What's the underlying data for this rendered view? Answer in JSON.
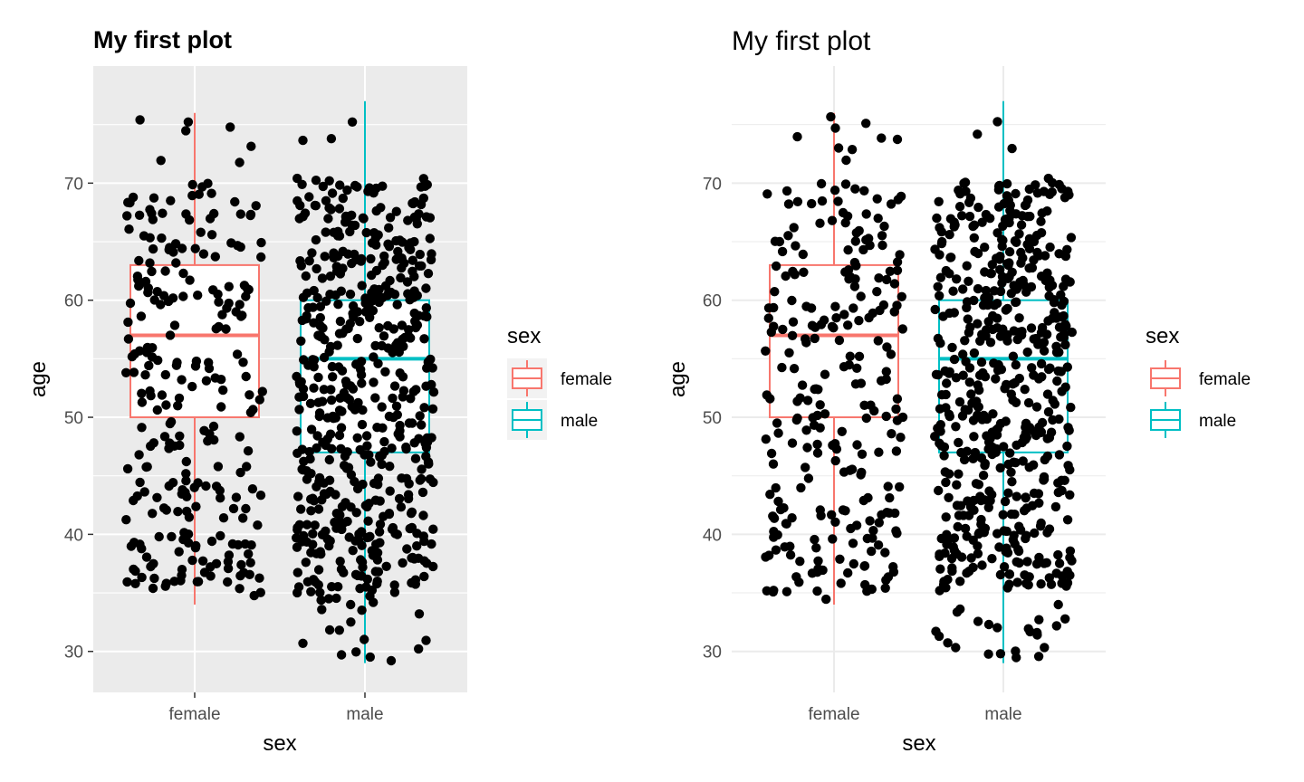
{
  "chart_data": [
    {
      "type": "boxplot",
      "theme": "grey",
      "title": "My first plot",
      "xlabel": "sex",
      "ylabel": "age",
      "categories": [
        "female",
        "male"
      ],
      "ylim": [
        26.5,
        80
      ],
      "yticks": [
        30,
        40,
        50,
        60,
        70
      ],
      "grid": true,
      "legend": {
        "title": "sex",
        "position": "right",
        "entries": [
          "female",
          "male"
        ]
      },
      "colors": {
        "female": "#F8766D",
        "male": "#00BFC4",
        "points": "#000000",
        "panel": "#EBEBEB"
      },
      "boxes": [
        {
          "category": "female",
          "lower_whisker": 34,
          "q1": 50,
          "median": 57,
          "q3": 63,
          "upper_whisker": 76
        },
        {
          "category": "male",
          "lower_whisker": 29,
          "q1": 47,
          "median": 55,
          "q3": 60,
          "upper_whisker": 77
        }
      ],
      "points": "jittered raw observations of age for each sex"
    },
    {
      "type": "boxplot",
      "theme": "minimal",
      "title": "My first plot",
      "xlabel": "sex",
      "ylabel": "age",
      "categories": [
        "female",
        "male"
      ],
      "ylim": [
        26.5,
        80
      ],
      "yticks": [
        30,
        40,
        50,
        60,
        70
      ],
      "grid": true,
      "legend": {
        "title": "sex",
        "position": "right",
        "entries": [
          "female",
          "male"
        ]
      },
      "colors": {
        "female": "#F8766D",
        "male": "#00BFC4",
        "points": "#000000",
        "grid": "#EBEBEB"
      },
      "boxes": [
        {
          "category": "female",
          "lower_whisker": 34,
          "q1": 50,
          "median": 57,
          "q3": 63,
          "upper_whisker": 76
        },
        {
          "category": "male",
          "lower_whisker": 29,
          "q1": 47,
          "median": 55,
          "q3": 60,
          "upper_whisker": 77
        }
      ],
      "points": "jittered raw observations of age for each sex"
    }
  ]
}
